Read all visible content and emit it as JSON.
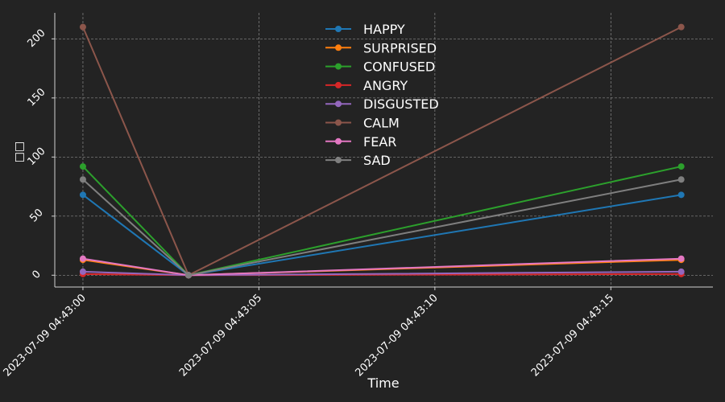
{
  "chart_data": {
    "type": "line",
    "title": "",
    "xlabel": "Time",
    "ylabel": "□□",
    "x_seconds": [
      0,
      3,
      17
    ],
    "x_ticks": [
      {
        "at": 0,
        "label": "2023-07-09 04:43:00"
      },
      {
        "at": 5,
        "label": "2023-07-09 04:43:05"
      },
      {
        "at": 10,
        "label": "2023-07-09 04:43:10"
      },
      {
        "at": 15,
        "label": "2023-07-09 04:43:15"
      }
    ],
    "y_ticks": [
      0,
      50,
      100,
      150,
      200
    ],
    "xlim": [
      -0.8,
      17.9
    ],
    "ylim": [
      -10,
      222
    ],
    "grid": true,
    "legend_position": "top-center",
    "series": [
      {
        "name": "HAPPY",
        "color": "#1f77b4",
        "values": [
          68,
          0,
          68
        ]
      },
      {
        "name": "SURPRISED",
        "color": "#ff7f0e",
        "values": [
          13,
          0,
          13
        ]
      },
      {
        "name": "CONFUSED",
        "color": "#2ca02c",
        "values": [
          92,
          0,
          92
        ]
      },
      {
        "name": "ANGRY",
        "color": "#d62728",
        "values": [
          1,
          0,
          1
        ]
      },
      {
        "name": "DISGUSTED",
        "color": "#9467bd",
        "values": [
          3,
          0,
          3
        ]
      },
      {
        "name": "CALM",
        "color": "#8c564b",
        "values": [
          210,
          0,
          210
        ]
      },
      {
        "name": "FEAR",
        "color": "#e377c2",
        "values": [
          14,
          0,
          14
        ]
      },
      {
        "name": "SAD",
        "color": "#7f7f7f",
        "values": [
          81,
          0,
          81
        ]
      }
    ]
  }
}
